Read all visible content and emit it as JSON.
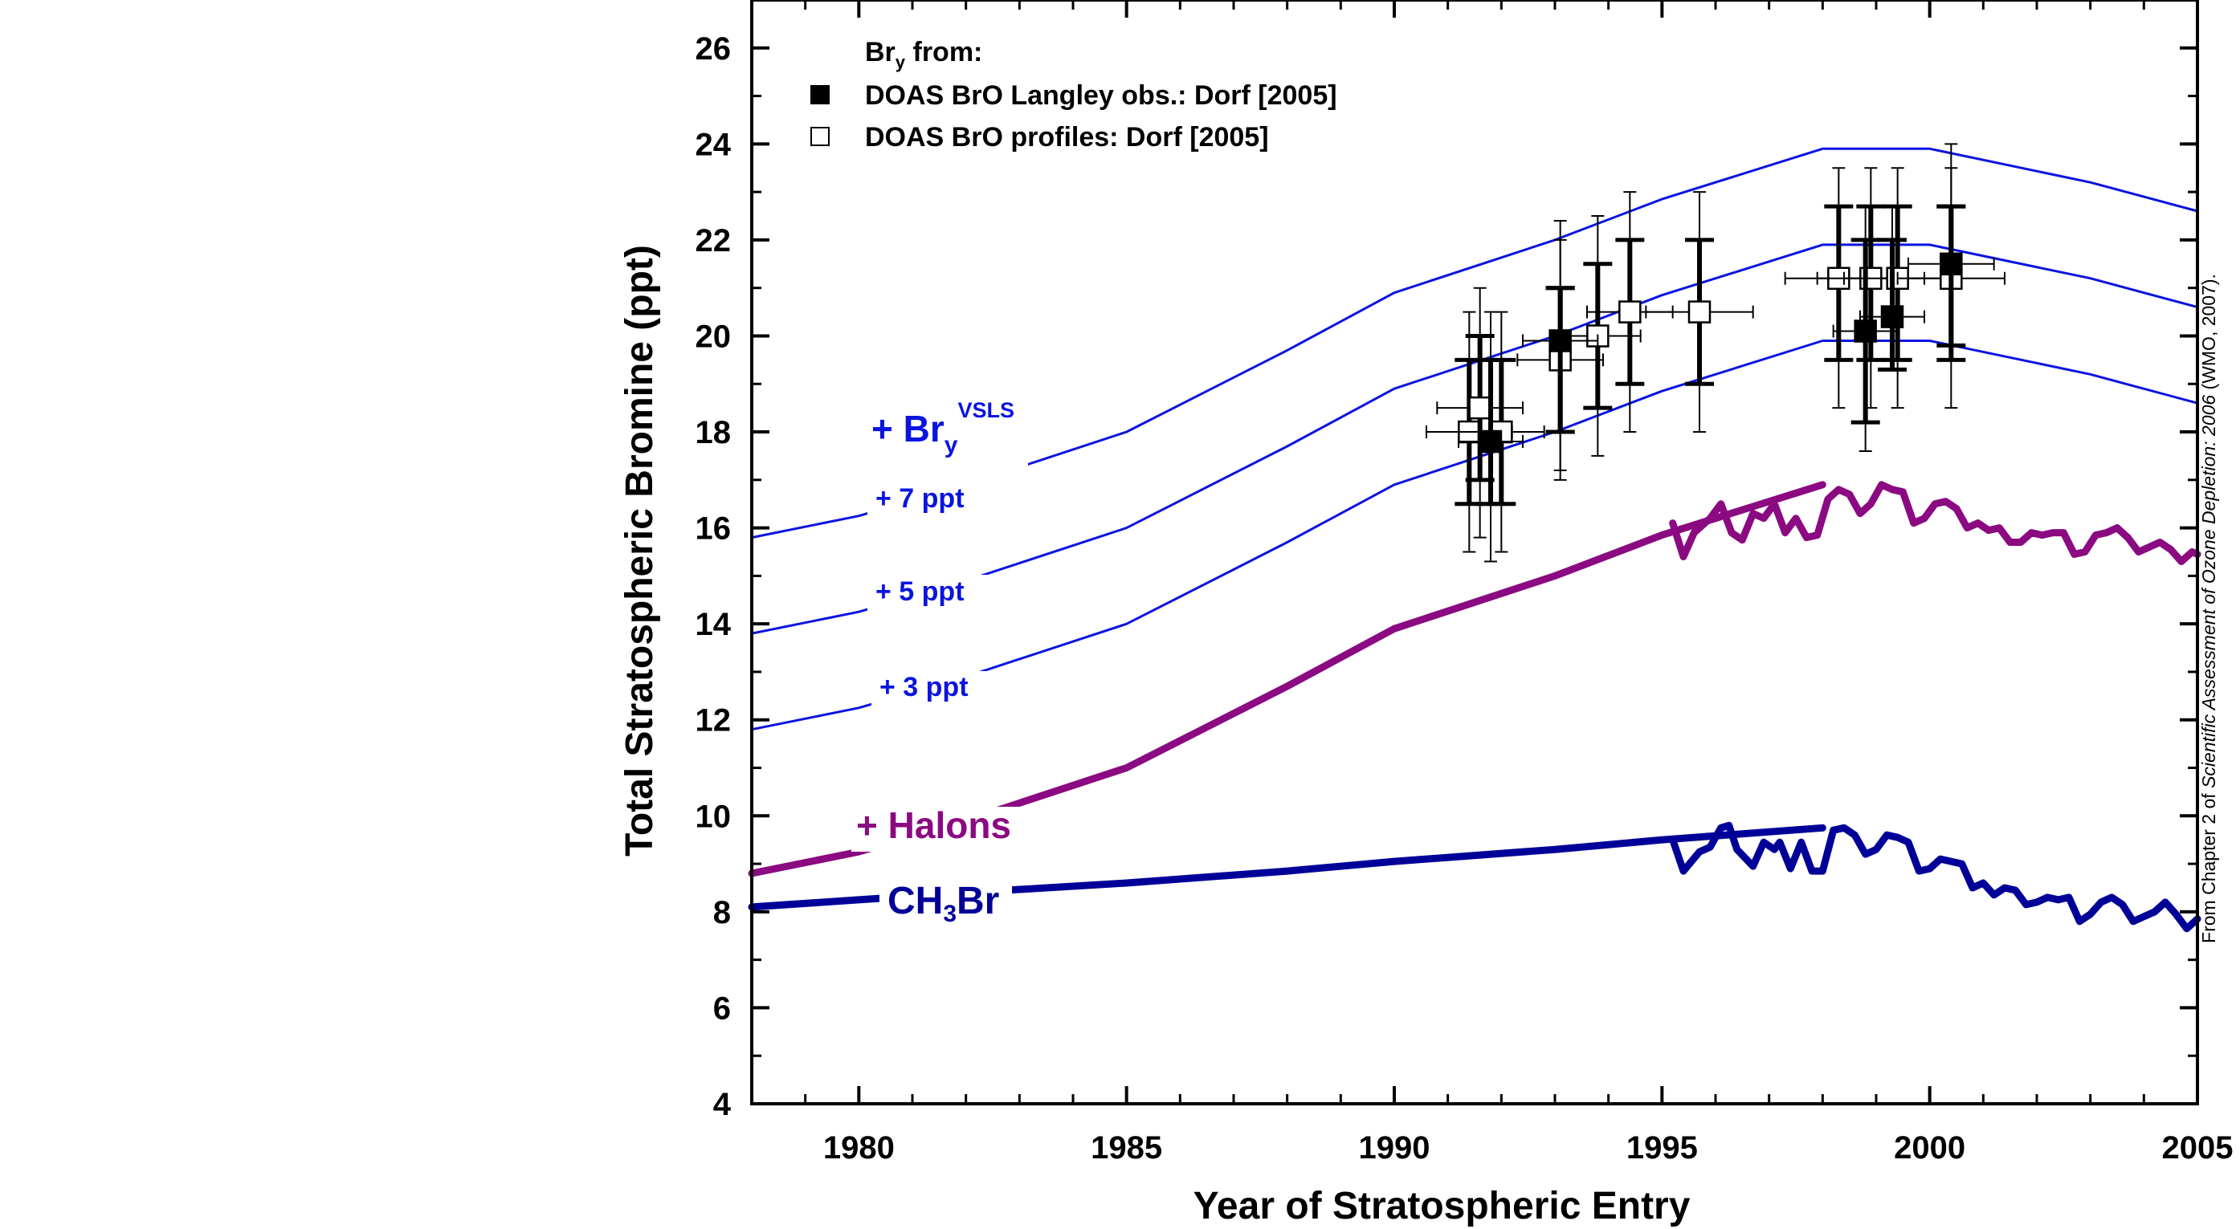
{
  "chart_data": {
    "type": "line",
    "xlabel": "Year of Stratospheric Entry",
    "ylabel": "Total Stratospheric Bromine (ppt)",
    "xlim": [
      1978,
      2005
    ],
    "ylim": [
      4,
      27
    ],
    "x_ticks": [
      1980,
      1985,
      1990,
      1995,
      2000,
      2005
    ],
    "y_ticks": [
      4,
      6,
      8,
      10,
      12,
      14,
      16,
      18,
      20,
      22,
      24,
      26
    ],
    "legend": {
      "position": "top-left",
      "title_main": "Br",
      "title_sub": "y",
      "title_rest": " from:",
      "entries": [
        {
          "label": "DOAS BrO Langley obs.: Dorf [2005]",
          "marker": "filled-square"
        },
        {
          "label": "DOAS BrO profiles: Dorf [2005]",
          "marker": "open-square"
        }
      ]
    },
    "colors": {
      "ch3br": "#000099",
      "halons": "#8b0a82",
      "vsls": "#0a14e0",
      "axis": "#000000"
    },
    "series": [
      {
        "key": "ch3br",
        "name_main": "CH",
        "name_sub": "3",
        "name_rest": "Br",
        "points": [
          [
            1978,
            8.1
          ],
          [
            1980,
            8.25
          ],
          [
            1982,
            8.4
          ],
          [
            1985,
            8.6
          ],
          [
            1988,
            8.85
          ],
          [
            1990,
            9.05
          ],
          [
            1993,
            9.3
          ],
          [
            1995,
            9.5
          ],
          [
            1998,
            9.75
          ]
        ],
        "points_detail": [
          [
            1995.2,
            9.5
          ],
          [
            1995.4,
            8.85
          ],
          [
            1995.7,
            9.25
          ],
          [
            1995.9,
            9.35
          ],
          [
            1996.1,
            9.75
          ],
          [
            1996.25,
            9.8
          ],
          [
            1996.4,
            9.3
          ],
          [
            1996.7,
            8.95
          ],
          [
            1996.9,
            9.45
          ],
          [
            1997.1,
            9.3
          ],
          [
            1997.2,
            9.45
          ],
          [
            1997.4,
            8.9
          ],
          [
            1997.6,
            9.45
          ],
          [
            1997.8,
            8.85
          ],
          [
            1998.0,
            8.85
          ],
          [
            1998.2,
            9.7
          ],
          [
            1998.4,
            9.75
          ],
          [
            1998.6,
            9.6
          ],
          [
            1998.8,
            9.2
          ],
          [
            1999.0,
            9.3
          ],
          [
            1999.2,
            9.6
          ],
          [
            1999.4,
            9.55
          ],
          [
            1999.6,
            9.45
          ],
          [
            1999.8,
            8.85
          ],
          [
            2000.0,
            8.9
          ],
          [
            2000.2,
            9.1
          ],
          [
            2000.4,
            9.05
          ],
          [
            2000.6,
            9.0
          ],
          [
            2000.8,
            8.5
          ],
          [
            2001.0,
            8.6
          ],
          [
            2001.2,
            8.35
          ],
          [
            2001.4,
            8.5
          ],
          [
            2001.6,
            8.45
          ],
          [
            2001.8,
            8.15
          ],
          [
            2002.0,
            8.2
          ],
          [
            2002.2,
            8.3
          ],
          [
            2002.4,
            8.25
          ],
          [
            2002.6,
            8.3
          ],
          [
            2002.8,
            7.8
          ],
          [
            2003.0,
            7.95
          ],
          [
            2003.2,
            8.2
          ],
          [
            2003.4,
            8.3
          ],
          [
            2003.6,
            8.15
          ],
          [
            2003.8,
            7.8
          ],
          [
            2004.0,
            7.9
          ],
          [
            2004.2,
            8.0
          ],
          [
            2004.4,
            8.2
          ],
          [
            2004.6,
            7.95
          ],
          [
            2004.8,
            7.65
          ],
          [
            2005.0,
            7.85
          ]
        ]
      },
      {
        "key": "halons",
        "name": "+ Halons",
        "points": [
          [
            1978,
            8.8
          ],
          [
            1980,
            9.25
          ],
          [
            1982,
            9.9
          ],
          [
            1985,
            11.0
          ],
          [
            1988,
            12.7
          ],
          [
            1990,
            13.9
          ],
          [
            1993,
            15.0
          ],
          [
            1995,
            15.85
          ],
          [
            1998,
            16.9
          ]
        ],
        "points_detail": [
          [
            1995.2,
            16.1
          ],
          [
            1995.4,
            15.4
          ],
          [
            1995.6,
            15.9
          ],
          [
            1995.9,
            16.2
          ],
          [
            1996.1,
            16.5
          ],
          [
            1996.3,
            15.9
          ],
          [
            1996.5,
            15.75
          ],
          [
            1996.7,
            16.3
          ],
          [
            1996.9,
            16.2
          ],
          [
            1997.1,
            16.5
          ],
          [
            1997.3,
            15.9
          ],
          [
            1997.5,
            16.2
          ],
          [
            1997.7,
            15.8
          ],
          [
            1997.9,
            15.85
          ],
          [
            1998.1,
            16.6
          ],
          [
            1998.3,
            16.8
          ],
          [
            1998.5,
            16.7
          ],
          [
            1998.7,
            16.3
          ],
          [
            1998.9,
            16.5
          ],
          [
            1999.1,
            16.9
          ],
          [
            1999.3,
            16.8
          ],
          [
            1999.5,
            16.75
          ],
          [
            1999.7,
            16.1
          ],
          [
            1999.9,
            16.2
          ],
          [
            2000.1,
            16.5
          ],
          [
            2000.3,
            16.55
          ],
          [
            2000.5,
            16.4
          ],
          [
            2000.7,
            16.0
          ],
          [
            2000.9,
            16.1
          ],
          [
            2001.1,
            15.95
          ],
          [
            2001.3,
            16.0
          ],
          [
            2001.5,
            15.7
          ],
          [
            2001.7,
            15.7
          ],
          [
            2001.9,
            15.9
          ],
          [
            2002.1,
            15.85
          ],
          [
            2002.3,
            15.9
          ],
          [
            2002.5,
            15.9
          ],
          [
            2002.7,
            15.45
          ],
          [
            2002.9,
            15.5
          ],
          [
            2003.1,
            15.85
          ],
          [
            2003.3,
            15.9
          ],
          [
            2003.5,
            16.0
          ],
          [
            2003.7,
            15.8
          ],
          [
            2003.9,
            15.5
          ],
          [
            2004.1,
            15.6
          ],
          [
            2004.3,
            15.7
          ],
          [
            2004.5,
            15.55
          ],
          [
            2004.7,
            15.3
          ],
          [
            2004.9,
            15.5
          ],
          [
            2005.0,
            15.45
          ]
        ]
      },
      {
        "key": "vsls3",
        "name": "+ 3 ppt",
        "points": [
          [
            1978,
            11.8
          ],
          [
            1980,
            12.25
          ],
          [
            1982,
            12.9
          ],
          [
            1985,
            14.0
          ],
          [
            1988,
            15.7
          ],
          [
            1990,
            16.9
          ],
          [
            1993,
            18.0
          ],
          [
            1995,
            18.85
          ],
          [
            1998,
            19.9
          ],
          [
            2000,
            19.9
          ],
          [
            2003,
            19.2
          ],
          [
            2005,
            18.6
          ]
        ]
      },
      {
        "key": "vsls5",
        "name": "+ 5 ppt",
        "points": [
          [
            1978,
            13.8
          ],
          [
            1980,
            14.25
          ],
          [
            1982,
            14.9
          ],
          [
            1985,
            16.0
          ],
          [
            1988,
            17.7
          ],
          [
            1990,
            18.9
          ],
          [
            1993,
            20.0
          ],
          [
            1995,
            20.85
          ],
          [
            1998,
            21.9
          ],
          [
            2000,
            21.9
          ],
          [
            2003,
            21.2
          ],
          [
            2005,
            20.6
          ]
        ]
      },
      {
        "key": "vsls7",
        "name": "+ 7 ppt",
        "points": [
          [
            1978,
            15.8
          ],
          [
            1980,
            16.25
          ],
          [
            1982,
            16.9
          ],
          [
            1985,
            18.0
          ],
          [
            1988,
            19.7
          ],
          [
            1990,
            20.9
          ],
          [
            1993,
            22.0
          ],
          [
            1995,
            22.85
          ],
          [
            1998,
            23.9
          ],
          [
            2000,
            23.9
          ],
          [
            2003,
            23.2
          ],
          [
            2005,
            22.6
          ]
        ]
      }
    ],
    "bry_label": {
      "main": "+ Br",
      "sub": "y",
      "sup": "VSLS"
    },
    "langley_obs": [
      {
        "x": 1991.8,
        "y": 17.8,
        "xerr": 0.6,
        "ylow": 16.5,
        "yhigh": 19.5,
        "ylow2": 15.3,
        "yhigh2": 20.5
      },
      {
        "x": 1993.1,
        "y": 19.9,
        "xerr": 0.7,
        "ylow": 18.0,
        "yhigh": 21.0,
        "ylow2": 17.2,
        "yhigh2": 22.4
      },
      {
        "x": 1998.8,
        "y": 20.1,
        "xerr": 0.6,
        "ylow": 18.2,
        "yhigh": 22.0,
        "ylow2": 17.6,
        "yhigh2": 22.7
      },
      {
        "x": 1999.3,
        "y": 20.4,
        "xerr": 0.6,
        "ylow": 19.3,
        "yhigh": 22.0,
        "ylow2": 19.3,
        "yhigh2": 22.7
      },
      {
        "x": 2000.4,
        "y": 21.5,
        "xerr": 0.8,
        "ylow": 19.8,
        "yhigh": 22.7,
        "ylow2": 19.8,
        "yhigh2": 24.0
      }
    ],
    "profiles": [
      {
        "x": 1991.4,
        "y": 18.0,
        "xerr": 0.8,
        "ylow": 16.5,
        "yhigh": 19.5,
        "ylow2": 15.5,
        "yhigh2": 20.5
      },
      {
        "x": 1991.6,
        "y": 18.5,
        "xerr": 0.8,
        "ylow": 17.0,
        "yhigh": 20.0,
        "ylow2": 15.8,
        "yhigh2": 21.0
      },
      {
        "x": 1992.0,
        "y": 18.0,
        "xerr": 0.8,
        "ylow": 16.5,
        "yhigh": 19.5,
        "ylow2": 15.5,
        "yhigh2": 20.5
      },
      {
        "x": 1993.1,
        "y": 19.5,
        "xerr": 0.8,
        "ylow": 18.0,
        "yhigh": 21.0,
        "ylow2": 17.0,
        "yhigh2": 22.0
      },
      {
        "x": 1993.8,
        "y": 20.0,
        "xerr": 0.8,
        "ylow": 18.5,
        "yhigh": 21.5,
        "ylow2": 17.5,
        "yhigh2": 22.5
      },
      {
        "x": 1994.4,
        "y": 20.5,
        "xerr": 0.8,
        "ylow": 19.0,
        "yhigh": 22.0,
        "ylow2": 18.0,
        "yhigh2": 23.0
      },
      {
        "x": 1995.7,
        "y": 20.5,
        "xerr": 1.0,
        "ylow": 19.0,
        "yhigh": 22.0,
        "ylow2": 18.0,
        "yhigh2": 23.0
      },
      {
        "x": 1998.3,
        "y": 21.2,
        "xerr": 1.0,
        "ylow": 19.5,
        "yhigh": 22.7,
        "ylow2": 18.5,
        "yhigh2": 23.5
      },
      {
        "x": 1998.9,
        "y": 21.2,
        "xerr": 1.0,
        "ylow": 19.5,
        "yhigh": 22.7,
        "ylow2": 18.5,
        "yhigh2": 23.5
      },
      {
        "x": 1999.4,
        "y": 21.2,
        "xerr": 1.0,
        "ylow": 19.5,
        "yhigh": 22.7,
        "ylow2": 18.5,
        "yhigh2": 23.5
      },
      {
        "x": 2000.4,
        "y": 21.2,
        "xerr": 1.0,
        "ylow": 19.5,
        "yhigh": 22.7,
        "ylow2": 18.5,
        "yhigh2": 23.5
      }
    ]
  },
  "credit": {
    "prefix": "From Chapter 2 of ",
    "italic": "Scientific Assessment of Ozone Depletion: 2006",
    "suffix": " (WMO, 2007)."
  }
}
